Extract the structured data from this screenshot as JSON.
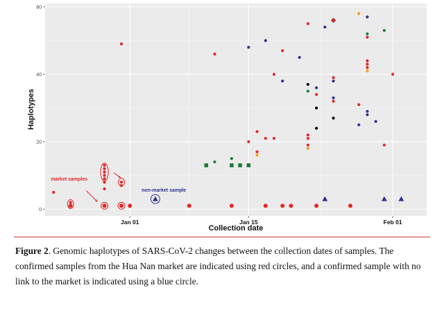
{
  "chart_data": {
    "type": "scatter",
    "xlabel": "Collection date",
    "ylabel": "Haplotypes",
    "x_range": [
      "2019-12-22",
      "2020-02-05"
    ],
    "ylim": [
      -2,
      61
    ],
    "x_ticks": [
      {
        "date": "2020-01-01",
        "label": "Jan 01"
      },
      {
        "date": "2020-01-15",
        "label": "Jan 15"
      },
      {
        "date": "2020-02-01",
        "label": "Feb 01"
      }
    ],
    "y_ticks": [
      0,
      20,
      40,
      60
    ],
    "grid": true,
    "colors": {
      "red": "#e32626",
      "blue": "#2e3192",
      "green": "#1f7a3a",
      "orange": "#f7a11a",
      "annotation": "#e32626",
      "background": "#ebebeb"
    },
    "points": [
      {
        "x": "2019-12-23",
        "y": 5,
        "shape": "dot",
        "color": "red"
      },
      {
        "x": "2019-12-25",
        "y": 1,
        "shape": "dot",
        "color": "red"
      },
      {
        "x": "2019-12-25",
        "y": 2,
        "shape": "dot",
        "color": "red"
      },
      {
        "x": "2019-12-29",
        "y": 1,
        "shape": "dot",
        "color": "red"
      },
      {
        "x": "2019-12-29",
        "y": 6,
        "shape": "dot",
        "color": "red"
      },
      {
        "x": "2019-12-29",
        "y": 8,
        "shape": "dot",
        "color": "red"
      },
      {
        "x": "2019-12-29",
        "y": 9,
        "shape": "dot",
        "color": "red"
      },
      {
        "x": "2019-12-29",
        "y": 10,
        "shape": "dot",
        "color": "red"
      },
      {
        "x": "2019-12-29",
        "y": 11,
        "shape": "dot",
        "color": "red"
      },
      {
        "x": "2019-12-29",
        "y": 12,
        "shape": "dot",
        "color": "red"
      },
      {
        "x": "2019-12-29",
        "y": 13,
        "shape": "dot",
        "color": "red"
      },
      {
        "x": "2019-12-31",
        "y": 1,
        "shape": "dot",
        "color": "red"
      },
      {
        "x": "2019-12-31",
        "y": 7,
        "shape": "dot",
        "color": "red"
      },
      {
        "x": "2019-12-31",
        "y": 8,
        "shape": "dot",
        "color": "red"
      },
      {
        "x": "2019-12-31",
        "y": 49,
        "shape": "dot",
        "color": "red"
      },
      {
        "x": "2020-01-01",
        "y": 1,
        "shape": "dot",
        "color": "red"
      },
      {
        "x": "2020-01-04",
        "y": 3,
        "shape": "triangle",
        "color": "blue"
      },
      {
        "x": "2020-01-08",
        "y": 1,
        "shape": "dot",
        "color": "red"
      },
      {
        "x": "2020-01-10",
        "y": 13,
        "shape": "square",
        "color": "green"
      },
      {
        "x": "2020-01-11",
        "y": 14,
        "shape": "dot",
        "color": "green"
      },
      {
        "x": "2020-01-11",
        "y": 46,
        "shape": "dot",
        "color": "red"
      },
      {
        "x": "2020-01-13",
        "y": 1,
        "shape": "dot",
        "color": "red"
      },
      {
        "x": "2020-01-13",
        "y": 13,
        "shape": "square",
        "color": "green"
      },
      {
        "x": "2020-01-13",
        "y": 15,
        "shape": "dot",
        "color": "green"
      },
      {
        "x": "2020-01-14",
        "y": 13,
        "shape": "square",
        "color": "green"
      },
      {
        "x": "2020-01-15",
        "y": 13,
        "shape": "square",
        "color": "green"
      },
      {
        "x": "2020-01-15",
        "y": 20,
        "shape": "dot",
        "color": "red"
      },
      {
        "x": "2020-01-15",
        "y": 48,
        "shape": "dot",
        "color": "blue"
      },
      {
        "x": "2020-01-16",
        "y": 16,
        "shape": "dot",
        "color": "orange"
      },
      {
        "x": "2020-01-16",
        "y": 17,
        "shape": "dot",
        "color": "red"
      },
      {
        "x": "2020-01-16",
        "y": 23,
        "shape": "dot",
        "color": "red"
      },
      {
        "x": "2020-01-17",
        "y": 1,
        "shape": "dot",
        "color": "red"
      },
      {
        "x": "2020-01-17",
        "y": 21,
        "shape": "dot",
        "color": "red"
      },
      {
        "x": "2020-01-17",
        "y": 50,
        "shape": "dot",
        "color": "blue"
      },
      {
        "x": "2020-01-18",
        "y": 21,
        "shape": "dot",
        "color": "red"
      },
      {
        "x": "2020-01-18",
        "y": 40,
        "shape": "dot",
        "color": "red"
      },
      {
        "x": "2020-01-19",
        "y": 1,
        "shape": "dot",
        "color": "red"
      },
      {
        "x": "2020-01-19",
        "y": 38,
        "shape": "dot",
        "color": "blue"
      },
      {
        "x": "2020-01-19",
        "y": 47,
        "shape": "dot",
        "color": "red"
      },
      {
        "x": "2020-01-20",
        "y": 1,
        "shape": "dot",
        "color": "red"
      },
      {
        "x": "2020-01-21",
        "y": 45,
        "shape": "dot",
        "color": "blue"
      },
      {
        "x": "2020-01-22",
        "y": 18,
        "shape": "dot",
        "color": "orange"
      },
      {
        "x": "2020-01-22",
        "y": 19,
        "shape": "dot",
        "color": "red"
      },
      {
        "x": "2020-01-22",
        "y": 21,
        "shape": "dot",
        "color": "red"
      },
      {
        "x": "2020-01-22",
        "y": 22,
        "shape": "dot",
        "color": "red"
      },
      {
        "x": "2020-01-22",
        "y": 35,
        "shape": "dot",
        "color": "green"
      },
      {
        "x": "2020-01-22",
        "y": 37,
        "shape": "dot",
        "color": "black"
      },
      {
        "x": "2020-01-22",
        "y": 55,
        "shape": "dot",
        "color": "red"
      },
      {
        "x": "2020-01-23",
        "y": 1,
        "shape": "dot",
        "color": "red"
      },
      {
        "x": "2020-01-23",
        "y": 24,
        "shape": "dot",
        "color": "black"
      },
      {
        "x": "2020-01-23",
        "y": 30,
        "shape": "dot",
        "color": "black"
      },
      {
        "x": "2020-01-23",
        "y": 34,
        "shape": "dot",
        "color": "red"
      },
      {
        "x": "2020-01-23",
        "y": 36,
        "shape": "dot",
        "color": "blue"
      },
      {
        "x": "2020-01-24",
        "y": 3,
        "shape": "triangle",
        "color": "blue"
      },
      {
        "x": "2020-01-24",
        "y": 54,
        "shape": "dot",
        "color": "blue"
      },
      {
        "x": "2020-01-25",
        "y": 27,
        "shape": "dot",
        "color": "black"
      },
      {
        "x": "2020-01-25",
        "y": 32,
        "shape": "dot",
        "color": "red"
      },
      {
        "x": "2020-01-25",
        "y": 33,
        "shape": "dot",
        "color": "blue"
      },
      {
        "x": "2020-01-25",
        "y": 38,
        "shape": "dot",
        "color": "blue"
      },
      {
        "x": "2020-01-25",
        "y": 39,
        "shape": "dot",
        "color": "red"
      },
      {
        "x": "2020-01-25",
        "y": 56,
        "shape": "diamond",
        "color": "red"
      },
      {
        "x": "2020-01-27",
        "y": 1,
        "shape": "dot",
        "color": "red"
      },
      {
        "x": "2020-01-28",
        "y": 25,
        "shape": "dot",
        "color": "blue"
      },
      {
        "x": "2020-01-28",
        "y": 31,
        "shape": "dot",
        "color": "red"
      },
      {
        "x": "2020-01-28",
        "y": 58,
        "shape": "dot",
        "color": "orange"
      },
      {
        "x": "2020-01-29",
        "y": 28,
        "shape": "dot",
        "color": "blue"
      },
      {
        "x": "2020-01-29",
        "y": 29,
        "shape": "dot",
        "color": "blue"
      },
      {
        "x": "2020-01-29",
        "y": 41,
        "shape": "dot",
        "color": "orange"
      },
      {
        "x": "2020-01-29",
        "y": 42,
        "shape": "dot",
        "color": "red"
      },
      {
        "x": "2020-01-29",
        "y": 43,
        "shape": "dot",
        "color": "red"
      },
      {
        "x": "2020-01-29",
        "y": 44,
        "shape": "dot",
        "color": "red"
      },
      {
        "x": "2020-01-29",
        "y": 51,
        "shape": "dot",
        "color": "red"
      },
      {
        "x": "2020-01-29",
        "y": 52,
        "shape": "dot",
        "color": "green"
      },
      {
        "x": "2020-01-29",
        "y": 57,
        "shape": "dot",
        "color": "blue"
      },
      {
        "x": "2020-01-30",
        "y": 26,
        "shape": "dot",
        "color": "blue"
      },
      {
        "x": "2020-01-31",
        "y": 3,
        "shape": "triangle",
        "color": "blue"
      },
      {
        "x": "2020-01-31",
        "y": 19,
        "shape": "dot",
        "color": "red"
      },
      {
        "x": "2020-01-31",
        "y": 53,
        "shape": "dot",
        "color": "green"
      },
      {
        "x": "2020-02-01",
        "y": 40,
        "shape": "dot",
        "color": "red"
      },
      {
        "x": "2020-02-02",
        "y": 3,
        "shape": "triangle",
        "color": "blue"
      }
    ],
    "annotations": [
      {
        "text": "market samples",
        "color": "annotation"
      },
      {
        "text": "non-market sample",
        "color": "blue"
      }
    ]
  },
  "caption": {
    "label": "Figure 2",
    "text": ". Genomic haplotypes of SARS-CoV-2 changes between the collection dates of samples. The confirmed samples from the Hua Nan market are indicated using red circles, and a confirmed sample with no link to the market is indicated using a blue circle."
  }
}
